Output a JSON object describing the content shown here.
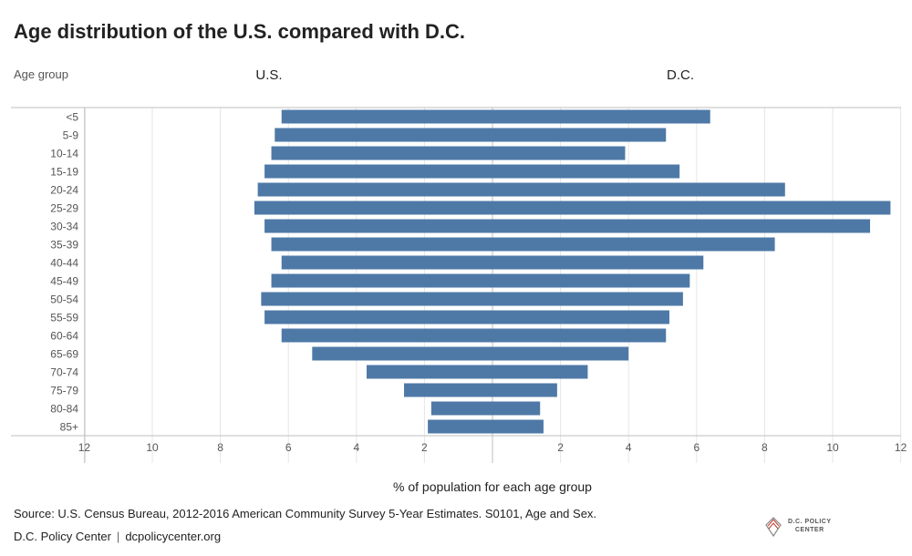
{
  "chart_data": {
    "type": "bar",
    "orientation": "horizontal",
    "layout": "population-pyramid",
    "title": "Age distribution of the U.S. compared with D.C.",
    "row_header": "Age group",
    "xlabel": "% of population for each age group",
    "categories": [
      "<5",
      "5-9",
      "10-14",
      "15-19",
      "20-24",
      "25-29",
      "30-34",
      "35-39",
      "40-44",
      "45-49",
      "50-54",
      "55-59",
      "60-64",
      "65-69",
      "70-74",
      "75-79",
      "80-84",
      "85+"
    ],
    "series": [
      {
        "name": "U.S.",
        "side": "left",
        "values": [
          6.2,
          6.4,
          6.5,
          6.7,
          6.9,
          7.0,
          6.7,
          6.5,
          6.2,
          6.5,
          6.8,
          6.7,
          6.2,
          5.3,
          3.7,
          2.6,
          1.8,
          1.9
        ]
      },
      {
        "name": "D.C.",
        "side": "right",
        "values": [
          6.4,
          5.1,
          3.9,
          5.5,
          8.6,
          11.7,
          11.1,
          8.3,
          6.2,
          5.8,
          5.6,
          5.2,
          5.1,
          4.0,
          2.8,
          1.9,
          1.4,
          1.5
        ]
      }
    ],
    "xlim_left": [
      0,
      12
    ],
    "xlim_right": [
      0,
      12
    ],
    "ticks_left": [
      "12",
      "10",
      "8",
      "6",
      "4",
      "2"
    ],
    "ticks_right": [
      "2",
      "4",
      "6",
      "8",
      "10",
      "12"
    ],
    "grid": true
  },
  "colors": {
    "bar": "#4e79a7",
    "grid": "#e6e6e6",
    "axis": "#bfbfbf"
  },
  "source": "Source: U.S. Census Bureau, 2012-2016 American Community Survey 5-Year Estimates. S0101, Age and Sex.",
  "footer": {
    "org": "D.C. Policy Center",
    "url": "dcpolicycenter.org"
  },
  "logo": {
    "line1": "D.C. POLICY",
    "line2": "CENTER",
    "icon": "dc-map-icon"
  }
}
